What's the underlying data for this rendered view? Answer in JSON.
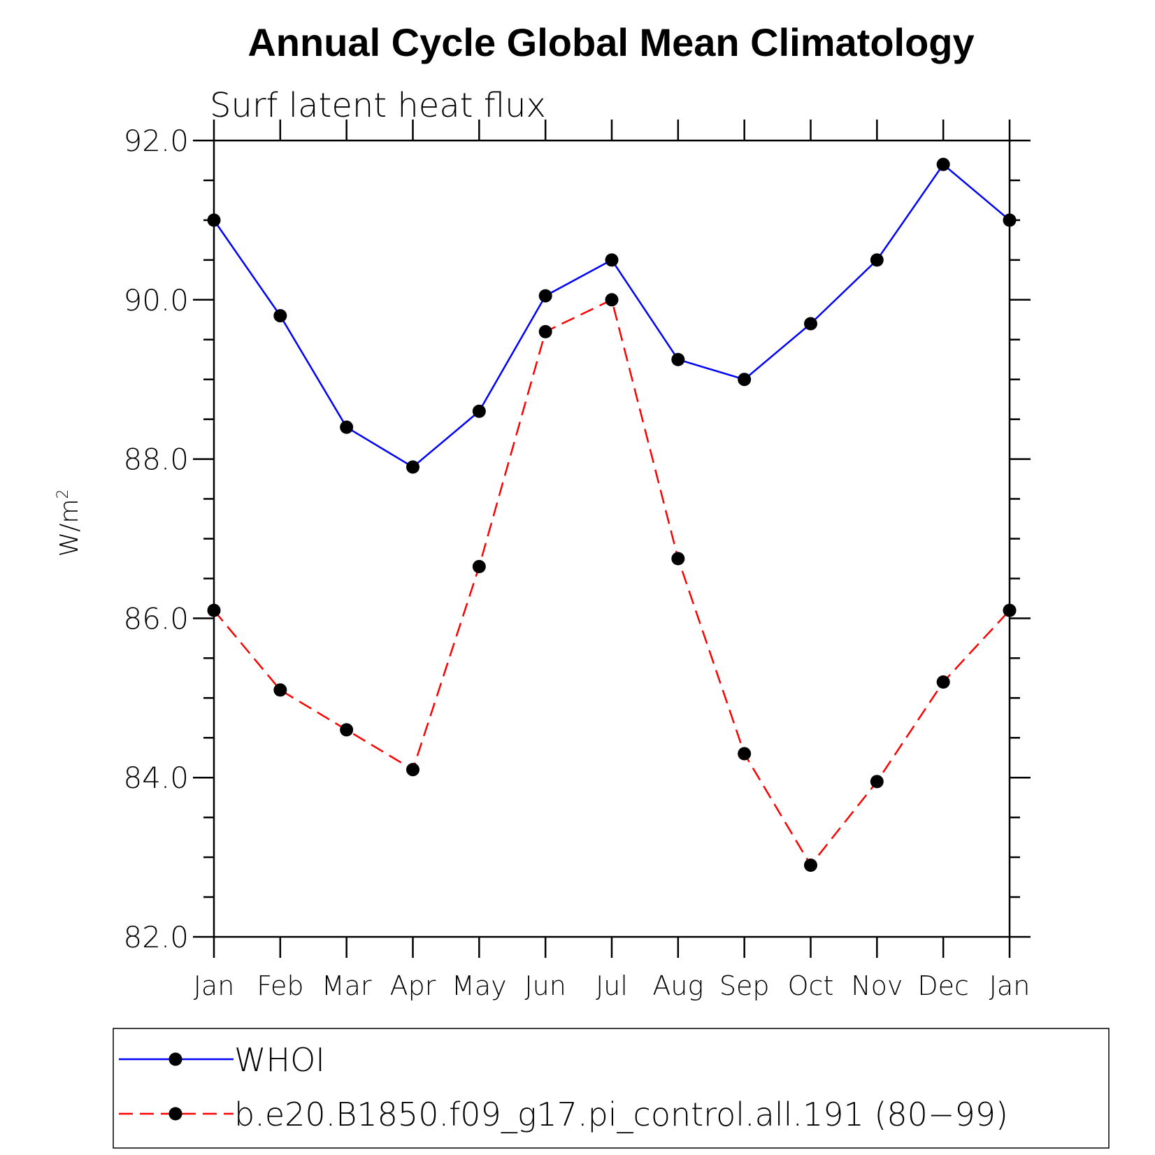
{
  "chart_data": {
    "type": "line",
    "title": "Annual Cycle Global Mean Climatology",
    "subtitle": "Surf latent heat flux",
    "ylabel": "W/m",
    "ylabel_superscript": "2",
    "xlabel": "",
    "categories": [
      "Jan",
      "Feb",
      "Mar",
      "Apr",
      "May",
      "Jun",
      "Jul",
      "Aug",
      "Sep",
      "Oct",
      "Nov",
      "Dec",
      "Jan"
    ],
    "ylim": [
      82.0,
      92.0
    ],
    "yticks": [
      82.0,
      84.0,
      86.0,
      88.0,
      90.0,
      92.0
    ],
    "ytick_labels": [
      "82.0",
      "84.0",
      "86.0",
      "88.0",
      "90.0",
      "92.0"
    ],
    "y_minor_step": 0.5,
    "grid": false,
    "legend_position": "bottom",
    "series": [
      {
        "name": "WHOI",
        "color": "#0000ff",
        "line_style": "solid",
        "marker": "filled-circle",
        "values": [
          91.0,
          89.8,
          88.4,
          87.9,
          88.6,
          90.05,
          90.5,
          89.25,
          89.0,
          89.7,
          90.5,
          91.7,
          91.0
        ]
      },
      {
        "name": "b.e20.B1850.f09_g17.pi_control.all.191 (80−99)",
        "color": "#ff0000",
        "line_style": "dashed",
        "marker": "filled-circle",
        "values": [
          86.1,
          85.1,
          84.6,
          84.1,
          86.65,
          89.6,
          90.0,
          86.75,
          84.3,
          82.9,
          83.95,
          85.2,
          86.1
        ]
      }
    ]
  }
}
